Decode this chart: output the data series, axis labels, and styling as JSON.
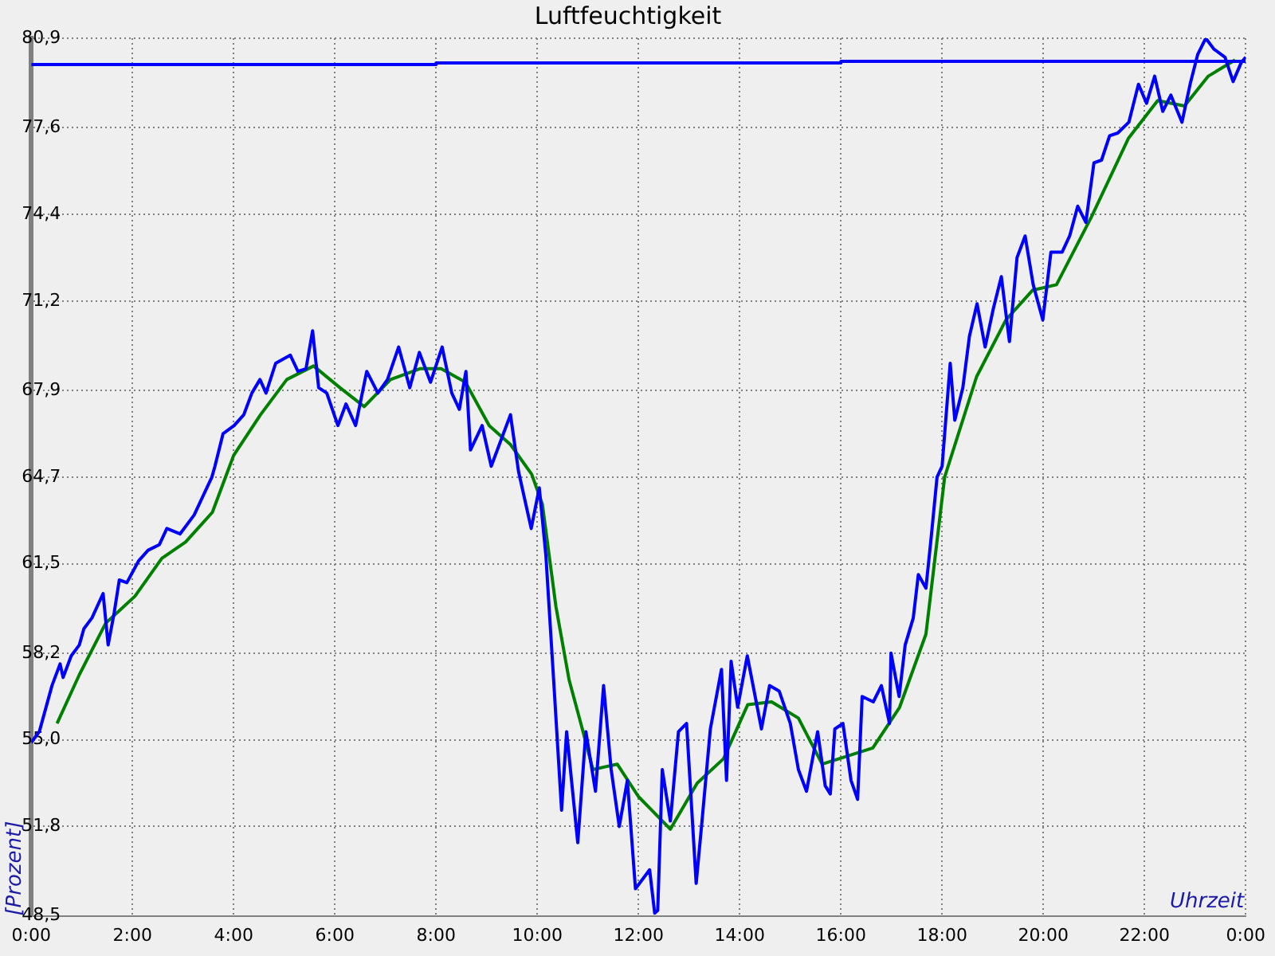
{
  "chart_data": {
    "type": "line",
    "title": "Luftfeuchtigkeit",
    "xlabel": "Uhrzeit",
    "ylabel": "[Prozent]",
    "xlim": [
      0,
      24
    ],
    "xticks": [
      {
        "value": 0,
        "label": "0:00"
      },
      {
        "value": 2,
        "label": "2:00"
      },
      {
        "value": 4,
        "label": "4:00"
      },
      {
        "value": 6,
        "label": "6:00"
      },
      {
        "value": 8,
        "label": "8:00"
      },
      {
        "value": 10,
        "label": "10:00"
      },
      {
        "value": 12,
        "label": "12:00"
      },
      {
        "value": 14,
        "label": "14:00"
      },
      {
        "value": 16,
        "label": "16:00"
      },
      {
        "value": 18,
        "label": "18:00"
      },
      {
        "value": 20,
        "label": "20:00"
      },
      {
        "value": 22,
        "label": "22:00"
      },
      {
        "value": 24,
        "label": "0:00"
      }
    ],
    "ylim": [
      48.5,
      80.9
    ],
    "yticks": [
      {
        "value": 48.5,
        "label": "48,5"
      },
      {
        "value": 51.8,
        "label": "51,8"
      },
      {
        "value": 55.0,
        "label": "55,0"
      },
      {
        "value": 58.2,
        "label": "58,2"
      },
      {
        "value": 61.5,
        "label": "61,5"
      },
      {
        "value": 64.7,
        "label": "64,7"
      },
      {
        "value": 67.9,
        "label": "67,9"
      },
      {
        "value": 71.2,
        "label": "71,2"
      },
      {
        "value": 74.4,
        "label": "74,4"
      },
      {
        "value": 77.6,
        "label": "77,6"
      },
      {
        "value": 80.9,
        "label": "80,9"
      }
    ],
    "grid": true,
    "legend": false,
    "marker": "none",
    "line_style": "solid",
    "series": [
      {
        "color": "#0000ff",
        "x": [
          0,
          8,
          8,
          16,
          16,
          24
        ],
        "values": [
          79.93,
          79.93,
          79.99,
          79.99,
          80.05,
          80.05
        ]
      },
      {
        "color": "#0000ff",
        "x": [
          0,
          0.16,
          0.41,
          0.57,
          0.63,
          0.79,
          0.95,
          1.04,
          1.2,
          1.42,
          1.52,
          1.64,
          1.74,
          1.89,
          2.12,
          2.31,
          2.53,
          2.68,
          2.94,
          3.22,
          3.47,
          3.57,
          3.63,
          3.79,
          4.01,
          4.2,
          4.36,
          4.52,
          4.64,
          4.83,
          5.12,
          5.27,
          5.43,
          5.56,
          5.68,
          5.84,
          6.06,
          6.22,
          6.41,
          6.63,
          6.85,
          7.04,
          7.26,
          7.48,
          7.67,
          7.89,
          8.12,
          8.31,
          8.46,
          8.59,
          8.68,
          8.91,
          9.09,
          9.25,
          9.47,
          9.63,
          9.88,
          10.04,
          10.17,
          10.33,
          10.48,
          10.58,
          10.8,
          10.96,
          11.15,
          11.31,
          11.46,
          11.62,
          11.78,
          11.94,
          12.22,
          12.32,
          12.38,
          12.47,
          12.63,
          12.79,
          12.95,
          13.14,
          13.26,
          13.42,
          13.64,
          13.74,
          13.83,
          13.96,
          14.15,
          14.43,
          14.59,
          14.78,
          15.0,
          15.16,
          15.32,
          15.54,
          15.69,
          15.79,
          15.88,
          16.04,
          16.2,
          16.33,
          16.42,
          16.64,
          16.8,
          16.96,
          16.99,
          17.15,
          17.27,
          17.43,
          17.53,
          17.68,
          17.78,
          17.9,
          18.0,
          18.16,
          18.25,
          18.41,
          18.54,
          18.69,
          18.85,
          19.01,
          19.17,
          19.33,
          19.48,
          19.64,
          19.8,
          19.99,
          20.15,
          20.37,
          20.52,
          20.68,
          20.84,
          21.0,
          21.15,
          21.31,
          21.47,
          21.69,
          21.88,
          22.04,
          22.2,
          22.36,
          22.52,
          22.74,
          22.9,
          23.05,
          23.21,
          23.37,
          23.59,
          23.75,
          23.91,
          24.0
        ],
        "values": [
          54.9,
          55.3,
          57.0,
          57.8,
          57.3,
          58.1,
          58.5,
          59.1,
          59.5,
          60.4,
          58.5,
          59.7,
          60.9,
          60.8,
          61.6,
          62.0,
          62.2,
          62.8,
          62.6,
          63.3,
          64.3,
          64.7,
          65.1,
          66.3,
          66.6,
          67.0,
          67.8,
          68.3,
          67.8,
          68.9,
          69.2,
          68.6,
          68.7,
          70.1,
          68.0,
          67.8,
          66.6,
          67.4,
          66.6,
          68.6,
          67.8,
          68.3,
          69.5,
          68.0,
          69.3,
          68.2,
          69.5,
          67.8,
          67.2,
          68.6,
          65.7,
          66.6,
          65.1,
          65.9,
          67.0,
          64.9,
          62.8,
          64.3,
          61.8,
          57.0,
          52.4,
          55.3,
          51.2,
          55.3,
          53.1,
          57.0,
          53.9,
          51.8,
          53.5,
          49.5,
          50.2,
          48.6,
          48.7,
          53.9,
          52.0,
          55.3,
          55.6,
          49.7,
          52.1,
          55.4,
          57.6,
          53.5,
          57.9,
          56.2,
          58.1,
          55.4,
          57.0,
          56.8,
          55.6,
          53.9,
          53.1,
          55.3,
          53.3,
          53.0,
          55.4,
          55.6,
          53.5,
          52.8,
          56.6,
          56.4,
          57.0,
          55.6,
          58.2,
          56.6,
          58.5,
          59.5,
          61.1,
          60.6,
          62.4,
          64.7,
          65.1,
          68.9,
          66.8,
          68.0,
          69.9,
          71.1,
          69.5,
          70.9,
          72.1,
          69.7,
          72.8,
          73.6,
          71.8,
          70.5,
          73.0,
          73.0,
          73.6,
          74.7,
          74.1,
          76.3,
          76.4,
          77.3,
          77.4,
          77.8,
          79.2,
          78.5,
          79.5,
          78.2,
          78.8,
          77.8,
          79.2,
          80.3,
          80.9,
          80.5,
          80.2,
          79.3,
          80.0,
          80.2
        ]
      },
      {
        "color": "#008000",
        "x": [
          0.51,
          0.95,
          1.47,
          2.05,
          2.58,
          3.05,
          3.58,
          3.84,
          4.0,
          4.53,
          5.05,
          5.58,
          6.1,
          6.58,
          7.1,
          7.68,
          8.1,
          8.58,
          9.05,
          9.47,
          9.89,
          10.1,
          10.37,
          10.63,
          10.89,
          11.1,
          11.58,
          12.0,
          12.63,
          13.16,
          13.68,
          14.16,
          14.63,
          15.16,
          15.63,
          16.63,
          17.16,
          17.68,
          18.05,
          18.68,
          19.26,
          19.79,
          20.26,
          20.95,
          21.68,
          22.26,
          22.79,
          23.26,
          23.79
        ],
        "values": [
          55.6,
          57.4,
          59.3,
          60.3,
          61.7,
          62.3,
          63.4,
          64.7,
          65.5,
          67.0,
          68.3,
          68.8,
          68.0,
          67.3,
          68.3,
          68.7,
          68.7,
          68.2,
          66.6,
          65.9,
          64.8,
          63.7,
          59.9,
          57.2,
          55.4,
          53.9,
          54.1,
          52.9,
          51.7,
          53.4,
          54.3,
          56.3,
          56.4,
          55.8,
          54.1,
          54.7,
          56.2,
          58.9,
          64.7,
          68.4,
          70.5,
          71.6,
          71.8,
          74.3,
          77.2,
          78.6,
          78.4,
          79.5,
          80.1
        ]
      }
    ]
  }
}
